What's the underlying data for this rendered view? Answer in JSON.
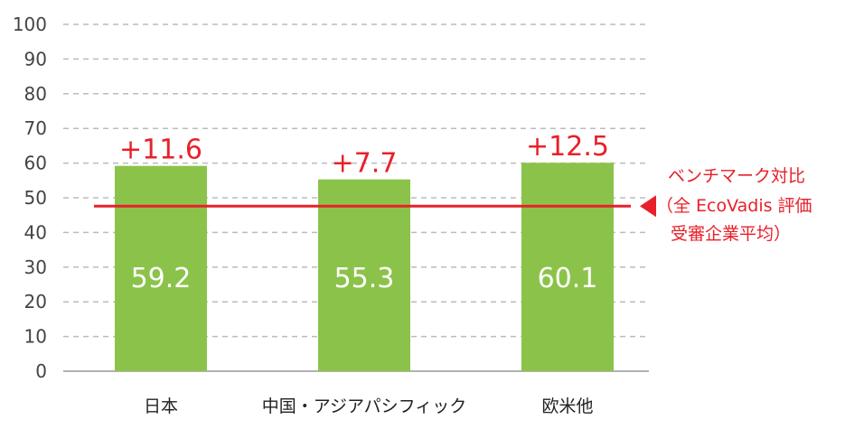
{
  "chart_data": {
    "type": "bar",
    "categories": [
      "日本",
      "中国・アジアパシフィック",
      "欧米他"
    ],
    "values": [
      59.2,
      55.3,
      60.1
    ],
    "value_labels": [
      "59.2",
      "55.3",
      "60.1"
    ],
    "deltas": [
      "+11.6",
      "+7.7",
      "+12.5"
    ],
    "ylim": [
      0,
      100
    ],
    "yticks": [
      0,
      10,
      20,
      30,
      40,
      50,
      60,
      70,
      80,
      90,
      100
    ],
    "grid": true,
    "benchmark": {
      "value": 47.6,
      "label_lines": [
        "ベンチマーク対比",
        "（全 EcoVadis 評価",
        "受審企業平均）"
      ]
    },
    "colors": {
      "bar": "#8bc34a",
      "benchmark": "#e8202a",
      "delta": "#e8202a",
      "grid": "#bbbbbb",
      "axis": "#999999"
    }
  }
}
